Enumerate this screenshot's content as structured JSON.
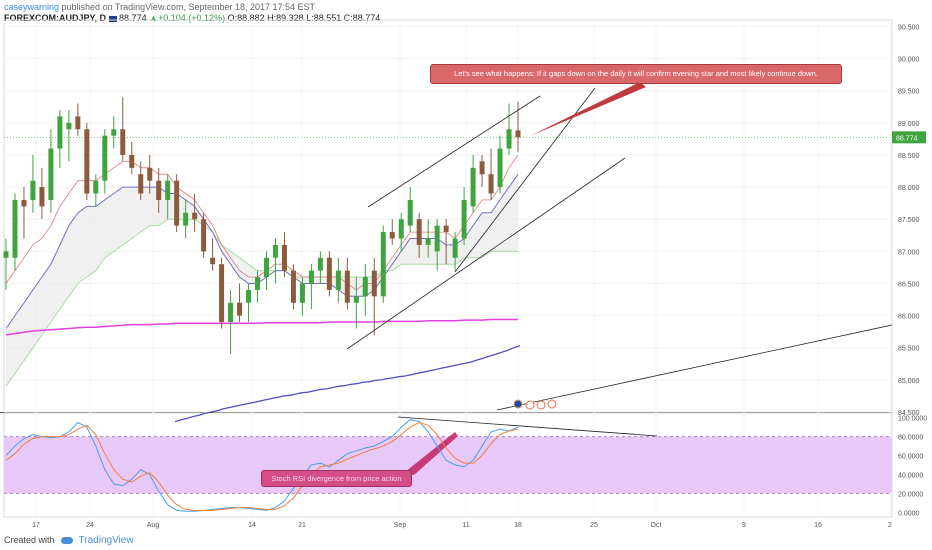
{
  "header": {
    "user": "caseywarning",
    "published": " published on TradingView.com, September 18, 2017 17:54 EST",
    "symbol": "FOREXCOM:AUDJPY, D",
    "price": "88.774",
    "change": "+0.104 (+0.12%)",
    "open": "O:88.882",
    "high": "H:89.328",
    "low": "L:88.551",
    "close": "C:88.774"
  },
  "footer": {
    "created_with": "Created with",
    "brand": "TradingView"
  },
  "annotations": {
    "evening_star": "Let's see what happens: If it gaps down on the daily it will confirm evening star and most likely continue down.",
    "rsi_divergence": "Stoch RSI divergence from price action"
  },
  "colors": {
    "bull": "#3fa33f",
    "bear": "#8c5a3c",
    "ema_fast": "#e0797f",
    "ema_slow": "#6f6fbf",
    "sma50": "#a8dca0",
    "sma100": "#e040e0",
    "sma200": "#5050c0",
    "stoch_k": "#4aa0e0",
    "stoch_d": "#f08040",
    "rsi_band": "#e8c8f8",
    "trendline": "#222222"
  },
  "chart_data": [
    {
      "type": "candlestick",
      "price_label": "88.774",
      "ylim": [
        84.5,
        90.6
      ],
      "y_ticks": [
        "90.500",
        "90.000",
        "89.500",
        "89.000",
        "88.500",
        "88.000",
        "87.500",
        "87.000",
        "86.500",
        "86.000",
        "85.500",
        "85.000",
        "84.500"
      ],
      "x_ticks": [
        "17",
        "24",
        "Aug",
        "14",
        "21",
        "Sep",
        "11",
        "18",
        "25",
        "Oct",
        "9",
        "16",
        "2"
      ],
      "candles": [
        {
          "date": "2017-07-10",
          "o": 86.9,
          "h": 87.2,
          "l": 86.4,
          "c": 87.0
        },
        {
          "date": "2017-07-11",
          "o": 86.9,
          "h": 87.9,
          "l": 86.7,
          "c": 87.8
        },
        {
          "date": "2017-07-12",
          "o": 87.8,
          "h": 88.0,
          "l": 87.2,
          "c": 87.7
        },
        {
          "date": "2017-07-13",
          "o": 87.8,
          "h": 88.5,
          "l": 87.6,
          "c": 88.1
        },
        {
          "date": "2017-07-14",
          "o": 88.0,
          "h": 88.3,
          "l": 87.5,
          "c": 87.7
        },
        {
          "date": "2017-07-17",
          "o": 87.8,
          "h": 88.9,
          "l": 87.6,
          "c": 88.6
        },
        {
          "date": "2017-07-18",
          "o": 88.6,
          "h": 89.2,
          "l": 88.3,
          "c": 89.1
        },
        {
          "date": "2017-07-19",
          "o": 88.9,
          "h": 89.2,
          "l": 88.4,
          "c": 89.0
        },
        {
          "date": "2017-07-20",
          "o": 89.1,
          "h": 89.3,
          "l": 88.8,
          "c": 88.9
        },
        {
          "date": "2017-07-21",
          "o": 88.9,
          "h": 89.0,
          "l": 87.8,
          "c": 87.9
        },
        {
          "date": "2017-07-24",
          "o": 87.9,
          "h": 88.2,
          "l": 87.7,
          "c": 88.1
        },
        {
          "date": "2017-07-25",
          "o": 88.1,
          "h": 88.9,
          "l": 87.9,
          "c": 88.8
        },
        {
          "date": "2017-07-26",
          "o": 88.8,
          "h": 89.1,
          "l": 88.6,
          "c": 88.9
        },
        {
          "date": "2017-07-27",
          "o": 88.9,
          "h": 89.4,
          "l": 88.4,
          "c": 88.5
        },
        {
          "date": "2017-07-28",
          "o": 88.5,
          "h": 88.7,
          "l": 88.2,
          "c": 88.3
        },
        {
          "date": "2017-07-31",
          "o": 88.2,
          "h": 88.4,
          "l": 87.8,
          "c": 87.9
        },
        {
          "date": "2017-08-01",
          "o": 88.3,
          "h": 88.5,
          "l": 87.9,
          "c": 88.1
        },
        {
          "date": "2017-08-02",
          "o": 88.1,
          "h": 88.3,
          "l": 87.6,
          "c": 87.8
        },
        {
          "date": "2017-08-03",
          "o": 87.8,
          "h": 88.2,
          "l": 87.5,
          "c": 88.1
        },
        {
          "date": "2017-08-04",
          "o": 88.1,
          "h": 88.2,
          "l": 87.3,
          "c": 87.4
        },
        {
          "date": "2017-08-07",
          "o": 87.4,
          "h": 87.8,
          "l": 87.2,
          "c": 87.6
        },
        {
          "date": "2017-08-08",
          "o": 87.6,
          "h": 87.9,
          "l": 87.3,
          "c": 87.5
        },
        {
          "date": "2017-08-09",
          "o": 87.5,
          "h": 87.6,
          "l": 86.9,
          "c": 87.0
        },
        {
          "date": "2017-08-10",
          "o": 86.9,
          "h": 87.2,
          "l": 86.7,
          "c": 86.8
        },
        {
          "date": "2017-08-11",
          "o": 86.8,
          "h": 86.9,
          "l": 85.8,
          "c": 85.9
        },
        {
          "date": "2017-08-14",
          "o": 85.9,
          "h": 86.4,
          "l": 85.4,
          "c": 86.2
        },
        {
          "date": "2017-08-15",
          "o": 86.2,
          "h": 86.5,
          "l": 85.9,
          "c": 86.0
        },
        {
          "date": "2017-08-16",
          "o": 86.2,
          "h": 86.5,
          "l": 85.9,
          "c": 86.4
        },
        {
          "date": "2017-08-17",
          "o": 86.4,
          "h": 86.7,
          "l": 86.2,
          "c": 86.6
        },
        {
          "date": "2017-08-18",
          "o": 86.6,
          "h": 87.0,
          "l": 86.4,
          "c": 86.9
        },
        {
          "date": "2017-08-21",
          "o": 86.9,
          "h": 87.2,
          "l": 86.5,
          "c": 87.1
        },
        {
          "date": "2017-08-22",
          "o": 87.1,
          "h": 87.3,
          "l": 86.6,
          "c": 86.7
        },
        {
          "date": "2017-08-23",
          "o": 86.7,
          "h": 86.8,
          "l": 86.1,
          "c": 86.2
        },
        {
          "date": "2017-08-24",
          "o": 86.2,
          "h": 86.6,
          "l": 86.0,
          "c": 86.5
        },
        {
          "date": "2017-08-25",
          "o": 86.5,
          "h": 86.8,
          "l": 86.1,
          "c": 86.7
        },
        {
          "date": "2017-08-28",
          "o": 86.7,
          "h": 87.0,
          "l": 86.5,
          "c": 86.9
        },
        {
          "date": "2017-08-29",
          "o": 86.9,
          "h": 87.0,
          "l": 86.3,
          "c": 86.4
        },
        {
          "date": "2017-08-30",
          "o": 86.4,
          "h": 86.9,
          "l": 86.2,
          "c": 86.7
        },
        {
          "date": "2017-08-31",
          "o": 86.7,
          "h": 86.9,
          "l": 86.1,
          "c": 86.2
        },
        {
          "date": "2017-09-01",
          "o": 86.2,
          "h": 86.6,
          "l": 85.8,
          "c": 86.3
        },
        {
          "date": "2017-09-04",
          "o": 86.3,
          "h": 86.8,
          "l": 86.0,
          "c": 86.6
        },
        {
          "date": "2017-09-05",
          "o": 86.7,
          "h": 86.9,
          "l": 85.7,
          "c": 86.3
        },
        {
          "date": "2017-09-06",
          "o": 86.3,
          "h": 87.4,
          "l": 86.2,
          "c": 87.3
        },
        {
          "date": "2017-09-07",
          "o": 87.3,
          "h": 87.5,
          "l": 87.1,
          "c": 87.2
        },
        {
          "date": "2017-09-08",
          "o": 87.2,
          "h": 87.6,
          "l": 87.0,
          "c": 87.5
        },
        {
          "date": "2017-09-11",
          "o": 87.4,
          "h": 88.0,
          "l": 87.3,
          "c": 87.8
        },
        {
          "date": "2017-09-12",
          "o": 87.5,
          "h": 87.6,
          "l": 86.9,
          "c": 87.1
        },
        {
          "date": "2017-09-13",
          "o": 87.1,
          "h": 87.5,
          "l": 86.9,
          "c": 87.2
        },
        {
          "date": "2017-09-14",
          "o": 87.0,
          "h": 87.5,
          "l": 86.7,
          "c": 87.4
        },
        {
          "date": "2017-09-15",
          "o": 87.4,
          "h": 87.5,
          "l": 86.8,
          "c": 87.3
        },
        {
          "date": "2017-09-18",
          "o": 86.9,
          "h": 87.3,
          "l": 86.7,
          "c": 87.2
        },
        {
          "date": "2017-09-19",
          "o": 87.2,
          "h": 88.0,
          "l": 87.1,
          "c": 87.8
        },
        {
          "date": "2017-09-20",
          "o": 87.7,
          "h": 88.5,
          "l": 87.6,
          "c": 88.3
        },
        {
          "date": "2017-09-21",
          "o": 88.4,
          "h": 88.5,
          "l": 88.0,
          "c": 88.2
        },
        {
          "date": "2017-09-22",
          "o": 88.2,
          "h": 88.6,
          "l": 87.8,
          "c": 87.9
        },
        {
          "date": "2017-09-25",
          "o": 88.0,
          "h": 88.8,
          "l": 87.9,
          "c": 88.6
        },
        {
          "date": "2017-09-26",
          "o": 88.6,
          "h": 89.3,
          "l": 88.5,
          "c": 88.9
        },
        {
          "date": "2017-09-27",
          "o": 88.882,
          "h": 89.328,
          "l": 88.551,
          "c": 88.774
        }
      ],
      "overlays": {
        "ema_fast": [
          86.5,
          86.7,
          86.9,
          87.1,
          87.2,
          87.4,
          87.7,
          87.9,
          88.1,
          88.1,
          88.1,
          88.2,
          88.3,
          88.4,
          88.4,
          88.3,
          88.3,
          88.2,
          88.2,
          88.0,
          87.9,
          87.8,
          87.6,
          87.4,
          87.1,
          86.9,
          86.7,
          86.6,
          86.6,
          86.7,
          86.8,
          86.8,
          86.7,
          86.6,
          86.6,
          86.6,
          86.6,
          86.6,
          86.5,
          86.4,
          86.5,
          86.5,
          86.7,
          86.9,
          87.1,
          87.3,
          87.3,
          87.3,
          87.3,
          87.3,
          87.2,
          87.4,
          87.6,
          87.8,
          87.8,
          88.0,
          88.3,
          88.5
        ],
        "ema_slow": [
          85.8,
          86.0,
          86.2,
          86.4,
          86.6,
          86.8,
          87.1,
          87.4,
          87.6,
          87.7,
          87.7,
          87.8,
          87.9,
          88.0,
          88.0,
          88.0,
          88.0,
          88.0,
          87.9,
          87.9,
          87.8,
          87.7,
          87.5,
          87.3,
          87.0,
          86.8,
          86.6,
          86.5,
          86.5,
          86.6,
          86.7,
          86.7,
          86.6,
          86.5,
          86.5,
          86.5,
          86.5,
          86.4,
          86.3,
          86.3,
          86.3,
          86.4,
          86.6,
          86.8,
          87.0,
          87.2,
          87.2,
          87.2,
          87.2,
          87.1,
          87.1,
          87.2,
          87.4,
          87.6,
          87.6,
          87.8,
          88.0,
          88.2
        ],
        "sma50": [
          84.9,
          85.1,
          85.3,
          85.5,
          85.7,
          85.9,
          86.1,
          86.3,
          86.5,
          86.6,
          86.7,
          86.9,
          87.0,
          87.1,
          87.2,
          87.3,
          87.4,
          87.4,
          87.5,
          87.5,
          87.5,
          87.5,
          87.4,
          87.3,
          87.1,
          87.0,
          86.9,
          86.8,
          86.7,
          86.7,
          86.7,
          86.7,
          86.6,
          86.6,
          86.6,
          86.6,
          86.6,
          86.6,
          86.6,
          86.6,
          86.6,
          86.6,
          86.7,
          86.7,
          86.8,
          86.8,
          86.8,
          86.8,
          86.8,
          86.8,
          86.8,
          86.9,
          86.9,
          86.9,
          87.0,
          87.0,
          87.0,
          87.0
        ],
        "sma100": [
          85.7,
          85.72,
          85.74,
          85.76,
          85.77,
          85.78,
          85.79,
          85.8,
          85.81,
          85.82,
          85.82,
          85.83,
          85.84,
          85.85,
          85.86,
          85.86,
          85.86,
          85.87,
          85.87,
          85.88,
          85.88,
          85.88,
          85.88,
          85.88,
          85.88,
          85.88,
          85.88,
          85.88,
          85.88,
          85.89,
          85.89,
          85.89,
          85.89,
          85.89,
          85.89,
          85.89,
          85.9,
          85.9,
          85.9,
          85.9,
          85.9,
          85.9,
          85.91,
          85.91,
          85.91,
          85.91,
          85.91,
          85.92,
          85.92,
          85.92,
          85.92,
          85.93,
          85.93,
          85.93,
          85.94,
          85.94,
          85.94,
          85.94
        ],
        "sma200": [
          84.35,
          84.38,
          84.4,
          84.43,
          84.45,
          84.48,
          84.5,
          84.52,
          84.55,
          84.57,
          84.59,
          84.61,
          84.63,
          84.65,
          84.67,
          84.69,
          84.71,
          84.73,
          84.75,
          84.76,
          84.78,
          84.8,
          84.81,
          84.83,
          84.85,
          84.86,
          84.88,
          84.9,
          84.91,
          84.93,
          84.94,
          84.96,
          84.97,
          84.99,
          85.0,
          85.02,
          85.03,
          85.05,
          85.06,
          85.08,
          85.1,
          85.12,
          85.14,
          85.16,
          85.18,
          85.2,
          85.22,
          85.24,
          85.26,
          85.28,
          85.31,
          85.34,
          85.37,
          85.4,
          85.43,
          85.46,
          85.5,
          85.53
        ]
      }
    },
    {
      "type": "line",
      "ylim": [
        -5,
        105
      ],
      "y_ticks": [
        "100.0000",
        "80.0000",
        "60.0000",
        "40.0000",
        "20.0000",
        "0.0000"
      ],
      "band": [
        20,
        80
      ],
      "series": [
        {
          "values": [
            60,
            70,
            78,
            82,
            80,
            79,
            80,
            85,
            95,
            90,
            70,
            45,
            30,
            28,
            35,
            45,
            40,
            22,
            8,
            2,
            1,
            1,
            2,
            3,
            4,
            5,
            5,
            4,
            3,
            2,
            5,
            12,
            25,
            38,
            50,
            52,
            48,
            55,
            62,
            65,
            68,
            70,
            75,
            80,
            90,
            98,
            96,
            85,
            70,
            55,
            50,
            48,
            55,
            70,
            85,
            88,
            86,
            90
          ]
        },
        {
          "values": [
            55,
            62,
            72,
            78,
            80,
            80,
            80,
            82,
            88,
            92,
            82,
            62,
            45,
            35,
            32,
            38,
            42,
            32,
            18,
            8,
            3,
            2,
            2,
            2,
            3,
            4,
            5,
            5,
            4,
            3,
            3,
            7,
            15,
            28,
            40,
            48,
            50,
            52,
            56,
            60,
            64,
            67,
            70,
            75,
            82,
            90,
            95,
            92,
            82,
            68,
            57,
            52,
            52,
            60,
            73,
            82,
            86,
            88
          ]
        }
      ]
    }
  ]
}
